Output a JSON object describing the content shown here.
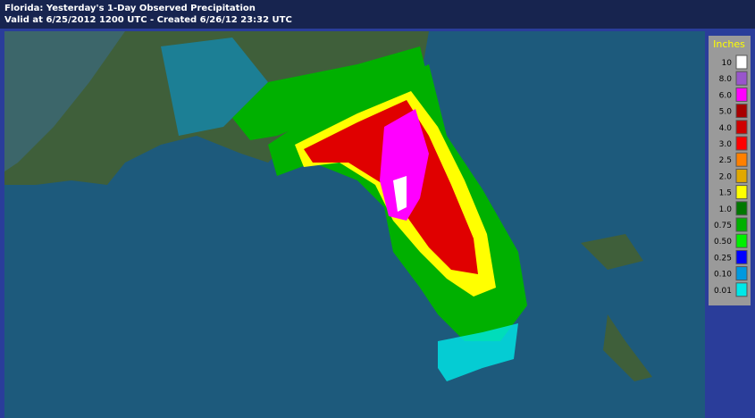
{
  "header": {
    "title": "Florida: Yesterday's 1-Day Observed Precipitation",
    "subtitle": "Valid at 6/25/2012 1200 UTC - Created 6/26/12 23:32 UTC"
  },
  "legend": {
    "title": "Inches",
    "entries": [
      {
        "label": "10",
        "color": "#ffffff"
      },
      {
        "label": "8.0",
        "color": "#9955cc"
      },
      {
        "label": "6.0",
        "color": "#ff00ff"
      },
      {
        "label": "5.0",
        "color": "#a80000"
      },
      {
        "label": "4.0",
        "color": "#d00000"
      },
      {
        "label": "3.0",
        "color": "#ff0000"
      },
      {
        "label": "2.5",
        "color": "#ff8000"
      },
      {
        "label": "2.0",
        "color": "#e0a800"
      },
      {
        "label": "1.5",
        "color": "#ffff00"
      },
      {
        "label": "1.0",
        "color": "#007800"
      },
      {
        "label": "0.75",
        "color": "#00b000"
      },
      {
        "label": "0.50",
        "color": "#00f000"
      },
      {
        "label": "0.25",
        "color": "#0000ff"
      },
      {
        "label": "0.10",
        "color": "#0099e0"
      },
      {
        "label": "0.01",
        "color": "#00e8e8"
      }
    ]
  }
}
